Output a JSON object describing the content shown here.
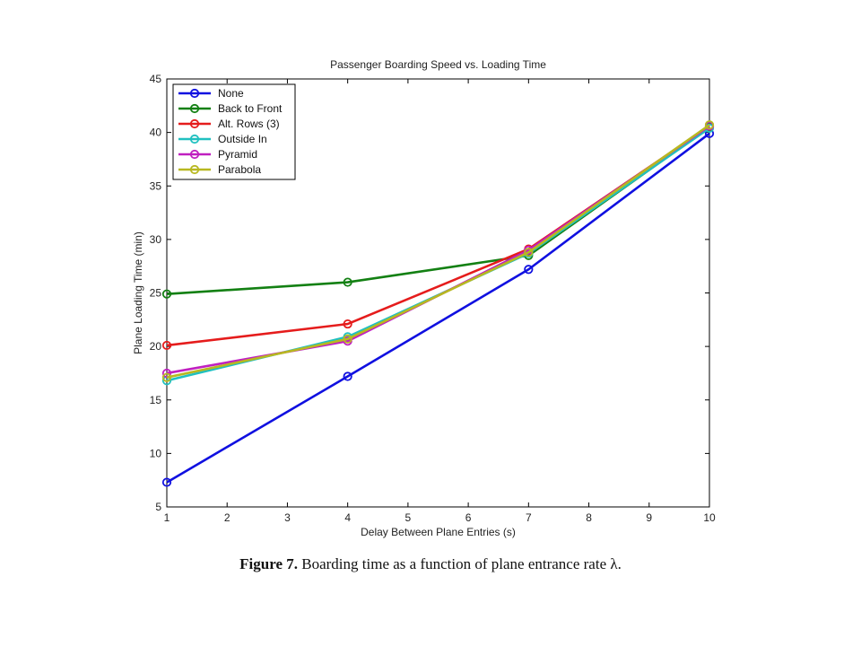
{
  "caption": {
    "label": "Figure 7.",
    "text": "Boarding time as a function of plane entrance rate λ."
  },
  "chart_data": {
    "type": "line",
    "title": "Passenger Boarding Speed vs. Loading Time",
    "xlabel": "Delay Between Plane Entries (s)",
    "ylabel": "Plane Loading Time (min)",
    "xlim": [
      1,
      10
    ],
    "ylim": [
      5,
      45
    ],
    "xticks": [
      1,
      2,
      3,
      4,
      5,
      6,
      7,
      8,
      9,
      10
    ],
    "yticks": [
      5,
      10,
      15,
      20,
      25,
      30,
      35,
      40,
      45
    ],
    "grid": false,
    "legend_position": "top-left",
    "x": [
      1,
      4,
      7,
      10
    ],
    "series": [
      {
        "name": "None",
        "color": "#1010e0",
        "values": [
          7.3,
          17.2,
          27.2,
          39.9
        ]
      },
      {
        "name": "Back to Front",
        "color": "#138013",
        "values": [
          24.9,
          26.0,
          28.5,
          40.5
        ]
      },
      {
        "name": "Alt. Rows (3)",
        "color": "#e51c1c",
        "values": [
          20.1,
          22.1,
          29.1,
          40.6
        ]
      },
      {
        "name": "Outside In",
        "color": "#20c0c0",
        "values": [
          16.8,
          20.9,
          28.7,
          40.4
        ]
      },
      {
        "name": "Pyramid",
        "color": "#c020c0",
        "values": [
          17.5,
          20.5,
          29.0,
          40.6
        ]
      },
      {
        "name": "Parabola",
        "color": "#b8b820",
        "values": [
          17.1,
          20.7,
          28.8,
          40.7
        ]
      }
    ]
  }
}
